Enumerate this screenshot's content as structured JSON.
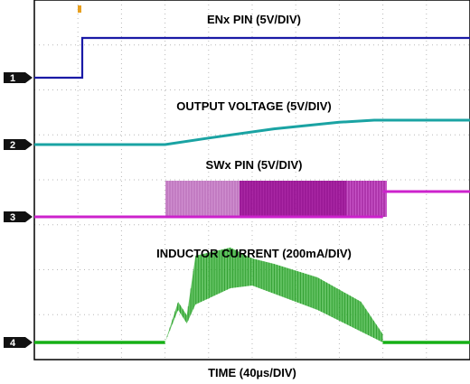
{
  "chart_data": {
    "type": "line",
    "title": "",
    "xlabel": "TIME (40µs/DIV)",
    "ylabel": "",
    "grid": true,
    "x_divisions": 10,
    "y_divisions": 8,
    "series": [
      {
        "name": "ENx PIN (5V/DIV)",
        "marker": "1",
        "color": "#1a1aa6",
        "points": [
          [
            0,
            0
          ],
          [
            1.1,
            0
          ],
          [
            1.1,
            1
          ],
          [
            10,
            1
          ]
        ]
      },
      {
        "name": "OUTPUT VOLTAGE (5V/DIV)",
        "marker": "2",
        "color": "#1aa3a3",
        "points": [
          [
            0,
            0
          ],
          [
            3.0,
            0
          ],
          [
            4.0,
            0.25
          ],
          [
            5.5,
            0.6
          ],
          [
            7.0,
            0.85
          ],
          [
            7.8,
            0.93
          ],
          [
            10,
            0.93
          ]
        ]
      },
      {
        "name": "SWx PIN (5V/DIV)",
        "marker": "3",
        "color": "#cc22cc",
        "points": [
          [
            0,
            0
          ],
          [
            3.0,
            0
          ],
          [
            3.0,
            1
          ],
          [
            8.0,
            1
          ],
          [
            8.0,
            0.7
          ],
          [
            10,
            0.7
          ]
        ]
      },
      {
        "name": "INDUCTOR CURRENT (200mA/DIV)",
        "marker": "4",
        "color": "#16b016",
        "points": [
          [
            0,
            0
          ],
          [
            3.0,
            0
          ],
          [
            3.3,
            0.7
          ],
          [
            3.5,
            0.45
          ],
          [
            3.7,
            1.3
          ],
          [
            4.5,
            1.35
          ],
          [
            5.0,
            1.3
          ],
          [
            5.5,
            1.2
          ],
          [
            6.5,
            0.95
          ],
          [
            7.5,
            0.5
          ],
          [
            8.0,
            0.05
          ],
          [
            10,
            0
          ]
        ]
      }
    ]
  }
}
